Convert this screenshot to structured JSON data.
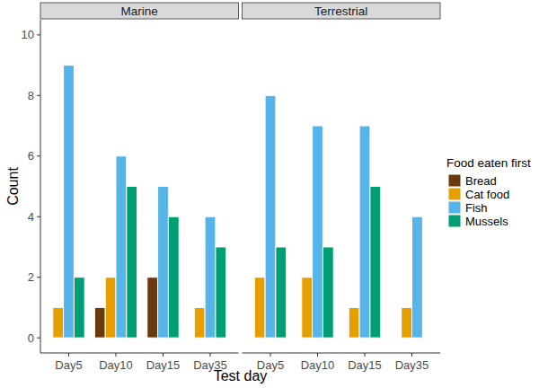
{
  "chart_data": {
    "type": "bar",
    "x_label": "Test day",
    "y_label": "Count",
    "legend_title": "Food eaten first",
    "legend": "right",
    "categories": [
      "Day5",
      "Day10",
      "Day15",
      "Day35"
    ],
    "ylim": [
      -0.5,
      10.5
    ],
    "yticks": [
      0,
      2,
      4,
      6,
      8,
      10
    ],
    "series": [
      {
        "name": "Bread",
        "color": "#6b3a0c"
      },
      {
        "name": "Cat food",
        "color": "#e69f00"
      },
      {
        "name": "Fish",
        "color": "#56b4e9"
      },
      {
        "name": "Mussels",
        "color": "#009e73"
      }
    ],
    "panels": [
      {
        "title": "Marine",
        "values": [
          [
            null,
            1,
            2,
            null
          ],
          [
            1,
            2,
            null,
            1
          ],
          [
            9,
            6,
            5,
            4
          ],
          [
            2,
            5,
            4,
            3
          ]
        ]
      },
      {
        "title": "Terrestrial",
        "values": [
          [
            null,
            null,
            null,
            null
          ],
          [
            2,
            2,
            1,
            1
          ],
          [
            8,
            7,
            7,
            4
          ],
          [
            3,
            3,
            5,
            null
          ]
        ]
      }
    ]
  }
}
